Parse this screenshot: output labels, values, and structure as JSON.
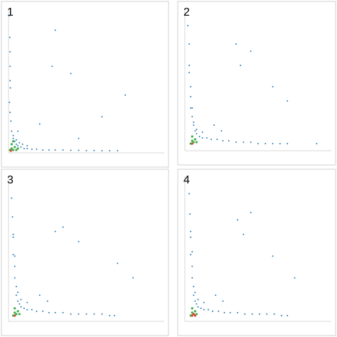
{
  "chart_data": [
    {
      "type": "scatter",
      "title": "1",
      "xlim": [
        0,
        100
      ],
      "ylim": [
        0,
        100
      ],
      "series": [
        {
          "color": "#2b7bb5",
          "x": [
            0.5,
            0.8,
            1,
            1.2,
            0.6,
            1,
            1.5,
            2,
            3,
            4,
            5,
            6,
            8,
            10,
            12,
            15,
            18,
            22,
            26,
            30,
            35,
            40,
            45,
            50,
            55,
            60,
            65,
            70,
            3,
            5,
            7,
            9,
            12,
            6,
            28,
            30,
            40,
            75,
            60,
            45,
            20,
            1,
            1
          ],
          "values": [
            95,
            80,
            60,
            45,
            35,
            28,
            22,
            15,
            10,
            8,
            6,
            5,
            4,
            3,
            3,
            2.5,
            2.5,
            2,
            2,
            2,
            2,
            1.8,
            1.8,
            1.6,
            1.6,
            1.5,
            1.5,
            1.5,
            12,
            9,
            7,
            6,
            5,
            15,
            60,
            85,
            55,
            40,
            25,
            10,
            20,
            70,
            50
          ]
        },
        {
          "color": "#3fae4a",
          "x": [
            1,
            2,
            3,
            4,
            5,
            2,
            3,
            6
          ],
          "values": [
            2,
            3,
            2,
            4,
            2,
            6,
            8,
            3
          ]
        },
        {
          "color": "#d8402a",
          "x": [
            1.5
          ],
          "values": [
            1.5
          ]
        }
      ]
    },
    {
      "type": "scatter",
      "title": "2",
      "xlim": [
        0,
        100
      ],
      "ylim": [
        0,
        100
      ],
      "series": [
        {
          "color": "#2b7bb5",
          "x": [
            2,
            3,
            3,
            4,
            4,
            5,
            5,
            6,
            7,
            8,
            10,
            12,
            15,
            18,
            22,
            26,
            30,
            35,
            40,
            45,
            50,
            55,
            60,
            65,
            70,
            8,
            12,
            6,
            35,
            45,
            38,
            60,
            70,
            90,
            3,
            4,
            20,
            25
          ],
          "values": [
            88,
            75,
            60,
            45,
            38,
            30,
            24,
            18,
            14,
            12,
            10,
            9,
            9,
            8,
            8,
            7,
            7,
            6,
            6,
            6,
            5,
            5,
            5,
            5,
            5,
            15,
            13,
            20,
            75,
            70,
            60,
            45,
            35,
            5,
            55,
            30,
            18,
            14
          ]
        },
        {
          "color": "#3fae4a",
          "x": [
            4,
            5,
            6,
            7,
            5,
            8
          ],
          "values": [
            5,
            7,
            6,
            8,
            10,
            6
          ]
        },
        {
          "color": "#d8402a",
          "x": [
            5
          ],
          "values": [
            5
          ]
        }
      ]
    },
    {
      "type": "scatter",
      "title": "3",
      "xlim": [
        0,
        100
      ],
      "ylim": [
        0,
        100
      ],
      "series": [
        {
          "color": "#2b7bb5",
          "x": [
            2,
            2.5,
            3,
            3,
            4,
            4,
            5,
            5,
            6,
            7,
            8,
            10,
            12,
            15,
            18,
            22,
            26,
            30,
            35,
            40,
            45,
            50,
            55,
            60,
            65,
            68,
            8,
            12,
            6,
            30,
            45,
            70,
            80,
            3,
            4,
            20,
            25,
            35
          ],
          "values": [
            85,
            72,
            58,
            46,
            38,
            30,
            24,
            18,
            14,
            12,
            10,
            9,
            8,
            8,
            7,
            7,
            6,
            6,
            6,
            5,
            5,
            5,
            5,
            5,
            4,
            4,
            15,
            13,
            20,
            62,
            55,
            40,
            30,
            60,
            45,
            18,
            14,
            65
          ]
        },
        {
          "color": "#3fae4a",
          "x": [
            3,
            4,
            5,
            6,
            4,
            7
          ],
          "values": [
            4,
            6,
            5,
            7,
            9,
            5
          ]
        },
        {
          "color": "#d8402a",
          "x": [
            4
          ],
          "values": [
            4
          ]
        }
      ]
    },
    {
      "type": "scatter",
      "title": "4",
      "xlim": [
        0,
        100
      ],
      "ylim": [
        0,
        100
      ],
      "series": [
        {
          "color": "#2b7bb5",
          "x": [
            3,
            3.5,
            4,
            4,
            5,
            5,
            6,
            6,
            7,
            8,
            9,
            11,
            13,
            16,
            19,
            23,
            27,
            31,
            36,
            41,
            46,
            51,
            56,
            61,
            66,
            70,
            9,
            13,
            7,
            40,
            45,
            60,
            75,
            4,
            5,
            21,
            26,
            36
          ],
          "values": [
            88,
            74,
            58,
            46,
            38,
            30,
            24,
            18,
            14,
            12,
            10,
            9,
            8,
            8,
            7,
            7,
            6,
            6,
            6,
            5,
            5,
            5,
            5,
            5,
            4,
            4,
            15,
            13,
            20,
            60,
            75,
            45,
            30,
            62,
            48,
            18,
            14,
            70
          ]
        },
        {
          "color": "#3fae4a",
          "x": [
            4,
            5,
            6,
            7,
            5,
            8
          ],
          "values": [
            4,
            6,
            5,
            7,
            9,
            5
          ]
        },
        {
          "color": "#d8402a",
          "x": [
            5,
            6,
            7
          ],
          "values": [
            4,
            5,
            4
          ]
        }
      ]
    }
  ]
}
